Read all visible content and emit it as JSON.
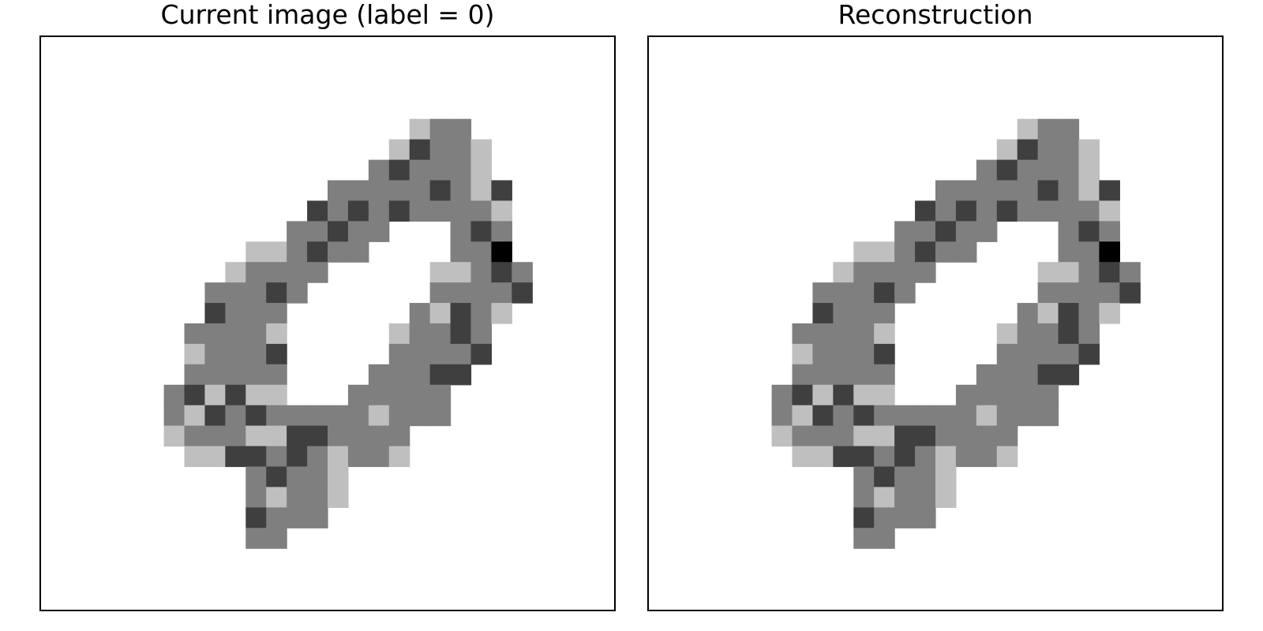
{
  "chart_data": [
    {
      "type": "heatmap",
      "title": "Current image (label = 0)",
      "grid_size": [
        28,
        28
      ],
      "colormap": "grayscale",
      "levels": {
        "0": "#ffffff",
        "1": "#bfbfbf",
        "2": "#7f7f7f",
        "3": "#3f3f3f",
        "4": "#000000"
      },
      "axes": "hidden",
      "rows": [
        "............................",
        "............................",
        "............................",
        "............................",
        "..................122.......",
        ".................13221......",
        "................232221......",
        "..............222223213.....",
        ".............3232322221.....",
        "............22322...232.....",
        "..........112322....224.....",
        ".........12222.....11232....",
        "........22232......22223....",
        "........3222......21321.....",
        ".......22221.....12232......",
        ".......12223.....22223......",
        ".......22222....22233.......",
        "......231311...22222........",
        "......21323222221222........",
        "......122211332222..........",
        ".......11332321221..........",
        "..........23221.............",
        "..........21221.............",
        "..........3222..............",
        "..........22................",
        "............................",
        "............................",
        "............................"
      ]
    },
    {
      "type": "heatmap",
      "title": "Reconstruction",
      "grid_size": [
        28,
        28
      ],
      "colormap": "grayscale",
      "levels": {
        "0": "#ffffff",
        "1": "#bfbfbf",
        "2": "#7f7f7f",
        "3": "#3f3f3f",
        "4": "#000000"
      },
      "axes": "hidden",
      "rows": [
        "............................",
        "............................",
        "............................",
        "............................",
        "..................122.......",
        ".................13221......",
        "................232221......",
        "..............222223213.....",
        ".............3232322221.....",
        "............22322...232.....",
        "..........112322....224.....",
        ".........12222.....11232....",
        "........22232......22223....",
        "........3222......21321.....",
        ".......22221.....12232......",
        ".......12223.....22223......",
        ".......22222....22233.......",
        "......231311...22222........",
        "......21323222221222........",
        "......122211332222..........",
        ".......11332321221..........",
        "..........23221.............",
        "..........21221.............",
        "..........3222..............",
        "..........22................",
        "............................",
        "............................",
        "............................"
      ]
    }
  ]
}
